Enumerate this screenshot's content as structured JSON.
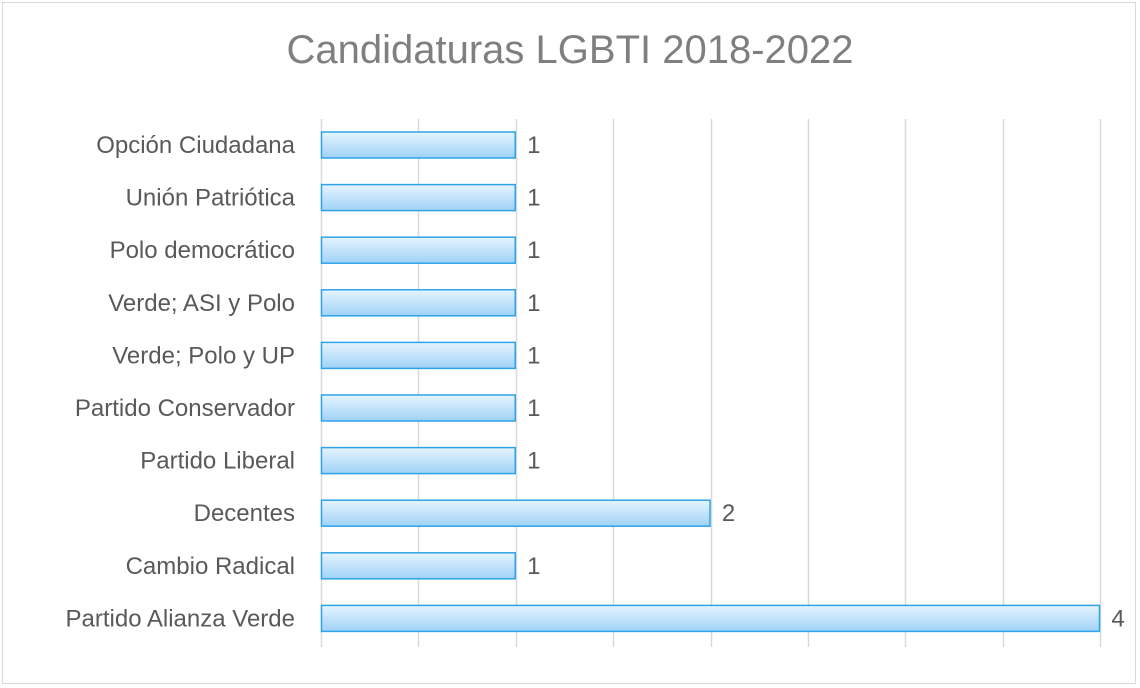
{
  "chart_data": {
    "type": "bar",
    "orientation": "horizontal",
    "title": "Candidaturas LGBTI 2018-2022",
    "xlabel": "",
    "ylabel": "",
    "xlim": [
      0,
      4
    ],
    "grid": true,
    "categories": [
      "Opción Ciudadana",
      "Unión Patriótica",
      "Polo democrático",
      "Verde; ASI y Polo",
      "Verde; Polo y UP",
      "Partido Conservador",
      "Partido Liberal",
      "Decentes",
      "Cambio Radical",
      "Partido Alianza Verde"
    ],
    "values": [
      1,
      1,
      1,
      1,
      1,
      1,
      1,
      2,
      1,
      4
    ],
    "data_labels": [
      "1",
      "1",
      "1",
      "1",
      "1",
      "1",
      "1",
      "2",
      "1",
      "4"
    ],
    "colors": {
      "bar_fill_top": "#e6f4fe",
      "bar_fill_bottom": "#9fd2f7",
      "bar_stroke": "#2fa3e7",
      "gridline": "#d9d9d9",
      "label_text": "#595959",
      "title_text": "#7f7f7f"
    }
  }
}
